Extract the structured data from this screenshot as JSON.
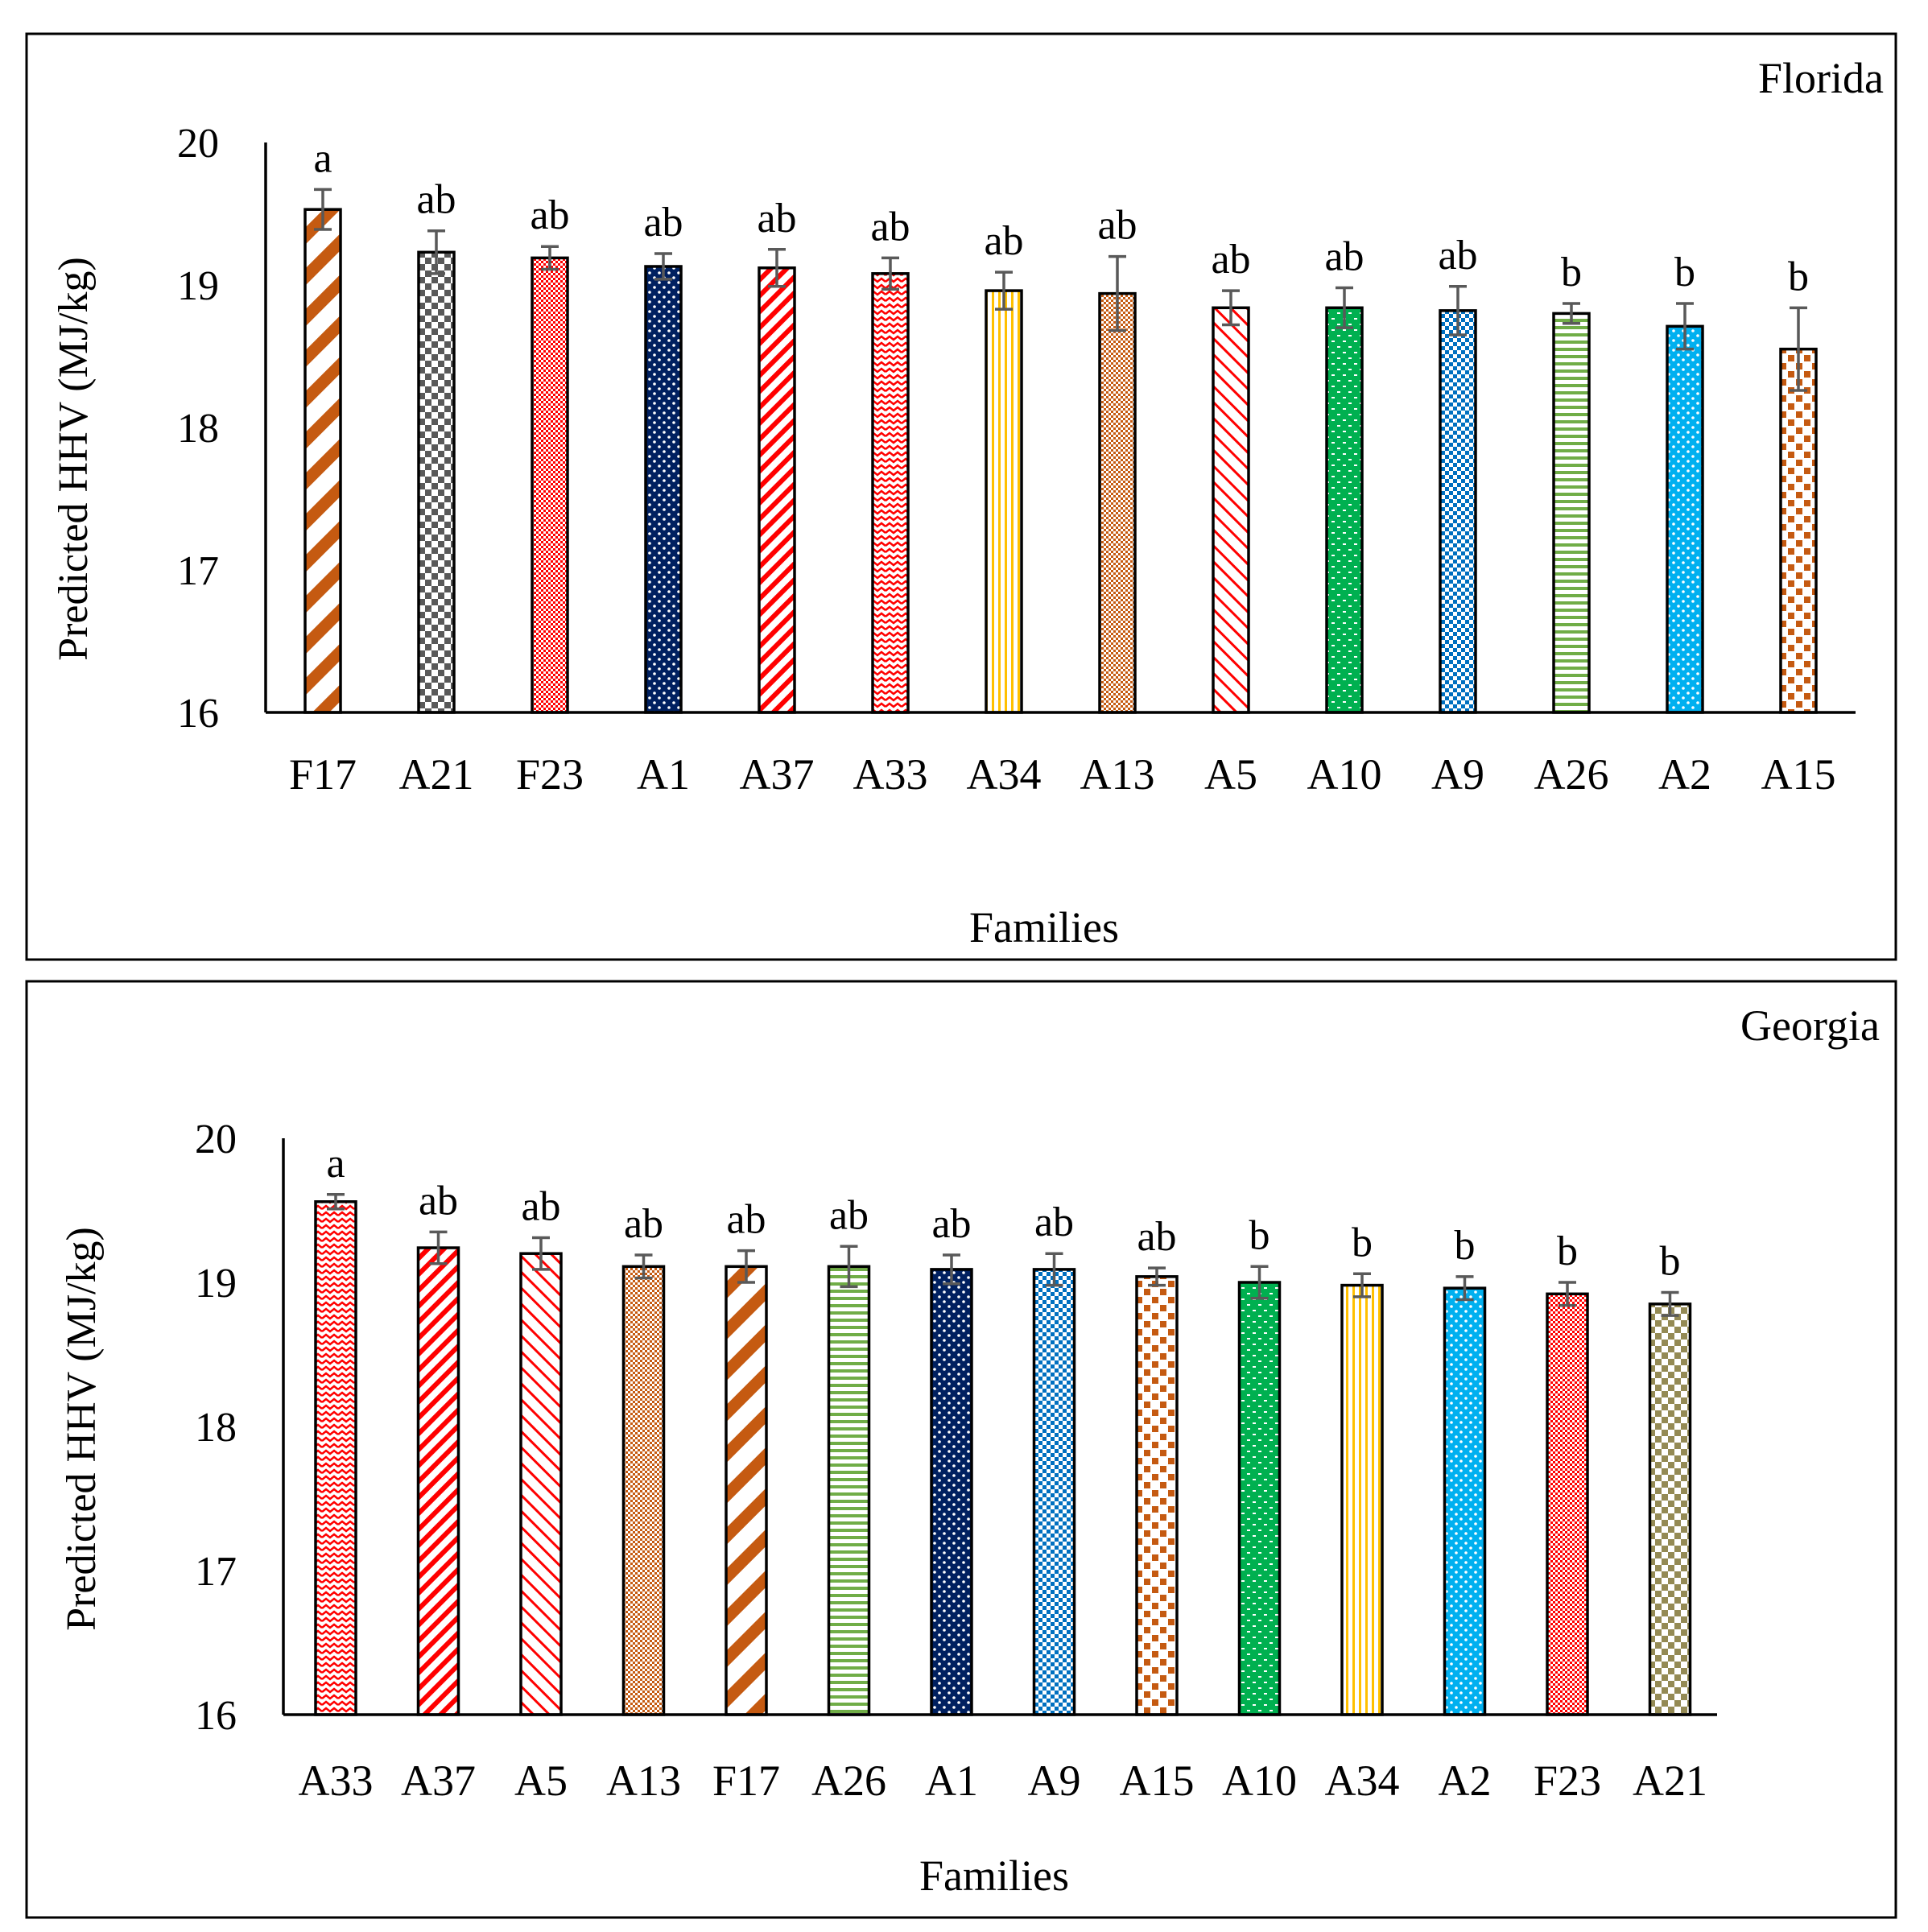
{
  "chart_data": [
    {
      "type": "bar",
      "title": "Florida",
      "xlabel": "Families",
      "ylabel": "Predicted HHV (MJ/kg)",
      "ylim": [
        16,
        20
      ],
      "yticks": [
        "16",
        "17",
        "18",
        "19",
        "20"
      ],
      "categories": [
        "F17",
        "A21",
        "F23",
        "A1",
        "A37",
        "A33",
        "A34",
        "A13",
        "A5",
        "A10",
        "A9",
        "A26",
        "A2",
        "A15"
      ],
      "values": [
        19.53,
        19.23,
        19.19,
        19.13,
        19.12,
        19.08,
        18.96,
        18.94,
        18.84,
        18.84,
        18.82,
        18.8,
        18.71,
        18.55
      ],
      "errors": [
        0.14,
        0.15,
        0.08,
        0.09,
        0.13,
        0.11,
        0.13,
        0.26,
        0.12,
        0.14,
        0.17,
        0.07,
        0.16,
        0.29
      ],
      "letters": [
        "a",
        "ab",
        "ab",
        "ab",
        "ab",
        "ab",
        "ab",
        "ab",
        "ab",
        "ab",
        "ab",
        "b",
        "b",
        "b"
      ],
      "colors": [
        "#c55a11",
        "#595959",
        "#ff0000",
        "#002060",
        "#ff0000",
        "#ff0000",
        "#ffc000",
        "#c55a11",
        "#ff0000",
        "#00b050",
        "#0070c0",
        "#70ad47",
        "#00b0f0",
        "#c55a11"
      ],
      "patterns": [
        "wide-diag",
        "checker",
        "small-check",
        "dots",
        "diag",
        "wave",
        "vertical",
        "small-check",
        "diag-thin",
        "dash-dots",
        "checker-small",
        "horizontal",
        "dots",
        "large-dots"
      ]
    },
    {
      "type": "bar",
      "title": "Georgia",
      "xlabel": "Families",
      "ylabel": "Predicted HHV (MJ/kg)",
      "ylim": [
        16,
        20
      ],
      "yticks": [
        "16",
        "17",
        "18",
        "19",
        "20"
      ],
      "categories": [
        "A33",
        "A37",
        "A5",
        "A13",
        "F17",
        "A26",
        "A1",
        "A9",
        "A15",
        "A10",
        "A34",
        "A2",
        "F23",
        "A21"
      ],
      "values": [
        19.56,
        19.24,
        19.2,
        19.11,
        19.11,
        19.11,
        19.09,
        19.09,
        19.04,
        19.0,
        18.98,
        18.96,
        18.92,
        18.85
      ],
      "errors": [
        0.05,
        0.11,
        0.11,
        0.08,
        0.11,
        0.14,
        0.1,
        0.11,
        0.06,
        0.11,
        0.08,
        0.08,
        0.08,
        0.08
      ],
      "letters": [
        "a",
        "ab",
        "ab",
        "ab",
        "ab",
        "ab",
        "ab",
        "ab",
        "ab",
        "b",
        "b",
        "b",
        "b",
        "b"
      ],
      "colors": [
        "#ff0000",
        "#ff0000",
        "#ff0000",
        "#c55a11",
        "#c55a11",
        "#70ad47",
        "#002060",
        "#0070c0",
        "#c55a11",
        "#00b050",
        "#ffc000",
        "#00b0f0",
        "#ff0000",
        "#948a54"
      ],
      "patterns": [
        "wave",
        "diag",
        "diag-thin",
        "small-check",
        "wide-diag",
        "horizontal",
        "dots",
        "checker-small",
        "large-dots",
        "dash-dots",
        "vertical",
        "dots",
        "small-check",
        "checker"
      ]
    }
  ]
}
